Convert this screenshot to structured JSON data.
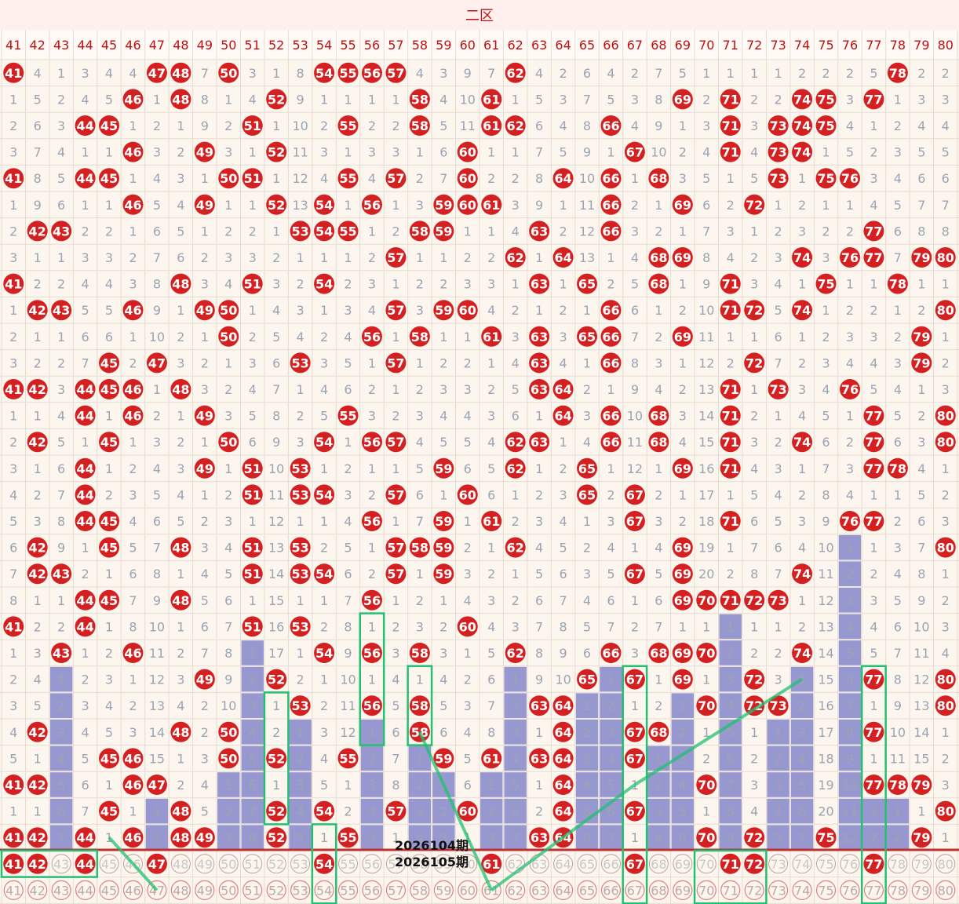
{
  "zone_title": "二区",
  "columns": [
    41,
    42,
    43,
    44,
    45,
    46,
    47,
    48,
    49,
    50,
    51,
    52,
    53,
    54,
    55,
    56,
    57,
    58,
    59,
    60,
    61,
    62,
    63,
    64,
    65,
    66,
    67,
    68,
    69,
    70,
    71,
    72,
    73,
    74,
    75,
    76,
    77,
    78,
    79,
    80
  ],
  "period_labels": [
    "2026104期",
    "2026105期"
  ],
  "colors": {
    "ball_red": "#d42020",
    "header_text": "#c01010",
    "cell_text": "#9aa4b2",
    "bar_blue": "#9898d0",
    "highlight_green": "#22c070",
    "bg": "#fdf6ee",
    "grid": "#e6dcd2",
    "bottom_red_line": "#c03030"
  },
  "chart_data": {
    "type": "table",
    "rows": [
      "41 4 1 3 4 4 47 48 7 50 3 1 8 54 55 56 57 4 3 9 7 62 4 2 6 4 2 7 5 1 1 1 1 2 2 2 5 78 2 2",
      "1 5 2 4 5 46 1 48 8 1 4 52 9 1 1 1 1 58 4 10 61 1 5 3 7 5 3 8 69 2 71 2 2 74 75 3 77 1 3 3",
      "2 6 3 44 45 1 2 1 9 2 51 1 10 2 55 2 2 58 5 11 61 62 6 4 8 66 4 9 1 3 71 3 73 74 75 4 1 2 4 4",
      "3 7 4 1 1 46 3 2 49 3 1 52 11 3 1 3 3 1 6 60 1 1 7 5 9 1 67 10 2 4 71 4 73 74 1 5 2 3 5 5",
      "41 8 5 44 45 1 4 3 1 50 51 1 12 4 55 4 57 2 7 60 2 2 8 64 10 66 1 68 3 5 1 5 73 1 75 76 3 4 6 6",
      "1 9 6 1 1 46 5 4 49 1 1 52 13 54 1 56 1 3 59 60 61 3 9 1 11 66 2 1 69 6 2 72 1 2 1 1 4 5 7 7",
      "2 42 43 2 2 1 6 5 1 2 2 1 53 54 55 1 2 58 59 1 1 4 63 2 12 66 3 2 1 7 3 1 2 3 2 2 77 6 8 8",
      "3 1 1 3 3 2 7 6 2 3 3 2 1 1 1 2 57 1 1 2 2 62 1 64 13 1 4 68 69 8 4 2 3 74 3 76 77 7 79 80",
      "41 2 2 4 4 3 8 48 3 4 51 3 2 54 2 3 1 2 2 3 3 1 63 1 65 2 5 68 1 9 71 3 4 1 75 1 1 78 1 1",
      "1 42 43 5 5 46 9 1 49 50 1 4 3 1 3 4 57 3 59 60 4 2 1 2 1 66 6 1 2 10 71 72 5 74 1 2 2 1 2 80",
      "2 1 1 6 6 1 10 2 1 50 2 5 4 2 4 56 1 58 1 1 61 3 63 3 65 66 7 2 69 11 1 1 6 1 2 3 3 2 79 1",
      "3 2 2 7 45 2 47 3 2 1 3 6 53 3 5 1 57 1 2 2 1 4 63 4 1 66 8 3 1 12 2 72 7 2 3 4 4 3 79 2",
      "41 42 3 44 45 46 1 48 3 2 4 7 1 4 6 2 1 2 3 3 2 5 63 64 2 1 9 4 2 13 71 1 73 3 4 76 5 4 1 3",
      "1 1 4 44 1 46 2 1 49 3 5 8 2 5 55 3 2 3 4 4 3 6 1 64 3 66 10 68 3 14 71 2 1 4 5 1 77 5 2 80",
      "2 42 5 1 45 1 3 2 1 50 6 9 3 54 1 56 57 4 5 5 4 62 63 1 4 66 11 68 4 15 71 3 2 74 6 2 77 6 3 80",
      "3 1 6 44 1 2 4 3 49 1 51 10 53 1 2 1 1 5 59 6 5 62 1 2 65 1 12 1 69 16 71 4 3 1 7 3 77 78 4 1",
      "4 2 7 44 2 3 5 4 1 2 51 11 53 54 3 2 57 6 1 60 6 1 2 3 65 2 67 2 1 17 1 5 4 2 8 4 1 1 5 2",
      "5 3 8 44 45 4 6 5 2 3 1 12 1 1 4 56 1 7 59 1 61 2 3 4 1 3 67 3 2 18 71 6 5 3 9 76 77 2 6 3",
      "6 42 9 1 45 5 7 48 3 4 51 13 53 2 5 1 57 58 59 2 1 62 4 5 2 4 1 4 69 19 1 7 6 4 10 1 1 3 7 80",
      "7 42 43 2 1 6 8 1 4 5 51 14 53 54 6 2 57 1 59 3 2 1 5 6 3 5 67 5 69 20 2 8 7 74 11 2 2 4 8 1",
      "8 1 1 44 45 7 9 48 5 6 1 15 1 1 7 56 1 2 1 4 3 2 6 7 4 6 1 6 69 70 71 72 73 1 12 3 3 5 9 2",
      "41 2 2 44 1 8 10 1 6 7 51 16 53 2 8 1 2 3 2 60 4 3 7 8 5 7 2 7 1 1 1 1 1 2 13 4 4 6 10 3",
      "1 3 43 1 2 46 11 2 7 8 1 17 1 54 9 56 3 58 3 1 5 62 8 9 6 66 3 68 69 70 2 2 2 74 14 5 5 7 11 4",
      "2 4 1 2 3 1 12 3 49 9 2 52 2 1 10 1 4 1 4 2 6 1 9 10 65 1 67 1 69 1 3 72 3 1 15 6 77 8 12 80",
      "3 5 2 3 4 2 13 4 2 10 3 1 53 2 11 56 5 58 5 3 7 2 63 64 1 2 1 2 1 70 4 72 73 2 16 7 1 9 13 80",
      "4 42 3 4 5 3 14 48 2 50 4 2 1 3 12 1 6 58 6 4 8 3 1 64 2 3 67 68 2 1 5 1 1 3 17 8 77 10 14 1",
      "5 1 4 5 45 46 15 1 3 50 5 52 2 4 55 2 7 1 59 5 61 4 63 64 3 4 67 1 3 2 6 2 2 4 18 9 1 11 15 2",
      "41 42 5 6 1 46 47 2 4 1 6 1 3 5 1 3 8 2 1 6 1 5 1 64 4 5 1 2 4 70 7 3 3 5 19 10 77 78 79 3",
      "1 1 6 7 45 1 1 48 5 2 7 52 4 54 2 4 57 3 2 60 2 6 2 64 5 6 67 3 5 1 8 4 4 6 20 11 1 1 1 80",
      "41 42 7 44 1 46 2 48 49 3 8 52 5 1 55 5 1 4 3 1 3 7 63 64 6 7 1 4 6 70 9 72 5 7 75 12 2 2 79 1",
      "41 42 43 44 45 46 47 48 49 50 51 52 53 54 55 56 57 58 59 60 61 62 63 64 65 66 67 68 69 70 71 72 73 74 75 76 77 78 79 80",
      "41 42 43 44 45 46 47 48 49 50 51 52 53 54 55 56 57 58 59 60 61 62 63 64 65 66 67 68 69 70 71 72 73 74 75 76 77 78 79 80"
    ],
    "drawn_row_10": [
      41,
      42,
      44,
      47,
      54,
      61,
      67,
      71,
      72,
      77
    ],
    "boxes": [
      {
        "col_from": 41,
        "col_to": 44,
        "row_from": 30,
        "row_to": 30
      },
      {
        "col_from": 52,
        "col_to": 52,
        "row_from": 24,
        "row_to": 28
      },
      {
        "col_from": 54,
        "col_to": 54,
        "row_from": 29,
        "row_to": 31
      },
      {
        "col_from": 56,
        "col_to": 56,
        "row_from": 21,
        "row_to": 25
      },
      {
        "col_from": 58,
        "col_to": 58,
        "row_from": 23,
        "row_to": 25
      },
      {
        "col_from": 67,
        "col_to": 67,
        "row_from": 23,
        "row_to": 31
      },
      {
        "col_from": 70,
        "col_to": 72,
        "row_from": 30,
        "row_to": 31
      },
      {
        "col_from": 77,
        "col_to": 77,
        "row_from": 23,
        "row_to": 31
      }
    ],
    "trend_lines": [
      {
        "from": [
          45,
          29
        ],
        "to": [
          47,
          31
        ]
      },
      {
        "from": [
          58,
          25
        ],
        "to": [
          61,
          31
        ]
      },
      {
        "from": [
          61,
          31
        ],
        "to": [
          67,
          27
        ]
      },
      {
        "from": [
          67,
          27
        ],
        "to": [
          74,
          23
        ]
      }
    ]
  }
}
